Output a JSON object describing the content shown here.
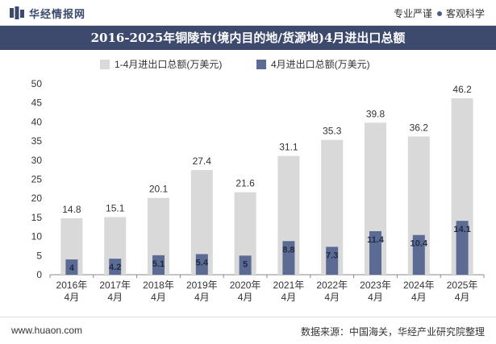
{
  "header": {
    "brand": "华经情报网",
    "tagline_left": "专业严谨",
    "tagline_right": "客观科学"
  },
  "title": "2016-2025年铜陵市(境内目的地/货源地)4月进出口总额",
  "footer": {
    "website": "www.huaon.com",
    "source": "数据来源：中国海关，华经产业研究院整理"
  },
  "colors": {
    "title_bg": "#3d4a6e",
    "series_total": "#d9d9d9",
    "series_april": "#5b6b93"
  },
  "chart_data": {
    "type": "bar",
    "categories": [
      "2016年\n4月",
      "2017年\n4月",
      "2018年\n4月",
      "2019年\n4月",
      "2020年\n4月",
      "2021年\n4月",
      "2022年\n4月",
      "2023年\n4月",
      "2024年\n4月",
      "2025年\n4月"
    ],
    "series": [
      {
        "name": "1-4月进出口总额(万美元)",
        "values": [
          14.8,
          15.1,
          20.1,
          27.4,
          21.6,
          31.1,
          35.3,
          39.8,
          36.2,
          46.2
        ]
      },
      {
        "name": "4月进出口总额(万美元)",
        "values": [
          4,
          4.2,
          5.1,
          5.4,
          5,
          8.8,
          7.3,
          11.4,
          10.4,
          14.1
        ]
      }
    ],
    "ylim": [
      0,
      50
    ],
    "yticks": [
      0,
      5,
      10,
      15,
      20,
      25,
      30,
      35,
      40,
      45,
      50
    ],
    "grid": false,
    "legend_position": "top-center",
    "xlabel": "",
    "ylabel": ""
  }
}
